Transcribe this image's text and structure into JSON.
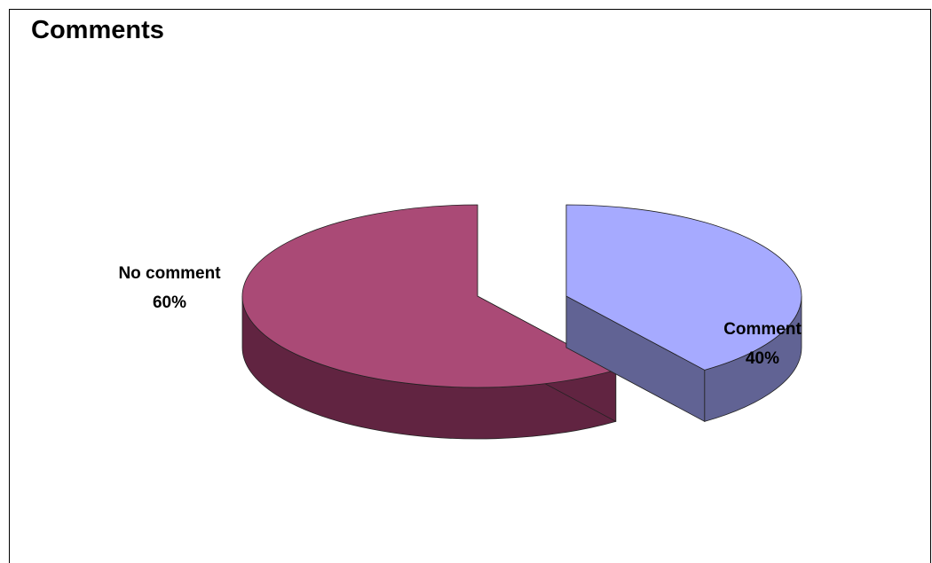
{
  "chart_data": {
    "type": "pie",
    "title": "Comments",
    "slices": [
      {
        "label": "No comment",
        "value": 60,
        "percent_label": "60%",
        "top_color": "#AA4A76",
        "side_color": "#612441"
      },
      {
        "label": "Comment",
        "value": 40,
        "percent_label": "40%",
        "top_color": "#A6AAFF",
        "side_color": "#616394"
      }
    ]
  }
}
